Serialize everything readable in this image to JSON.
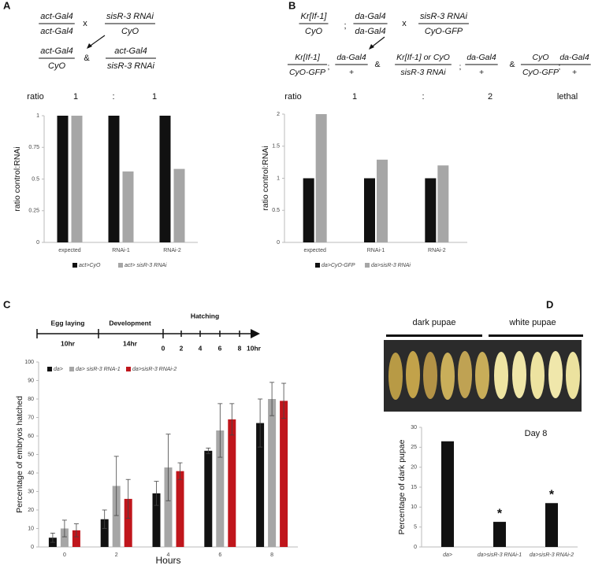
{
  "panel_a": {
    "label": "A",
    "parents": [
      {
        "top": "act-Gal4",
        "bottom": "act-Gal4"
      },
      {
        "text": "x"
      },
      {
        "top": "sisR-3 RNAi",
        "bottom": "CyO"
      }
    ],
    "offspring": [
      {
        "top": "act-Gal4",
        "bottom": "CyO"
      },
      {
        "text": "&"
      },
      {
        "top": "act-Gal4",
        "bottom": "sisR-3 RNAi"
      }
    ],
    "ratio": [
      "ratio",
      "1",
      ":",
      "1"
    ]
  },
  "panel_b": {
    "label": "B",
    "parents": [
      {
        "top": "Kr[If-1]",
        "bottom": "CyO"
      },
      {
        "text": ";"
      },
      {
        "top": "da-Gal4",
        "bottom": "da-Gal4"
      },
      {
        "text": "x"
      },
      {
        "top": "sisR-3 RNAi",
        "bottom": "CyO-GFP"
      }
    ],
    "offspring": [
      {
        "top": "Kr[If-1]",
        "bottom": "CyO-GFP"
      },
      {
        "text": ";"
      },
      {
        "top": "da-Gal4",
        "bottom": "+"
      },
      {
        "text": "&"
      },
      {
        "top": "Kr[If-1] or CyO",
        "bottom": "sisR-3 RNAi"
      },
      {
        "text": ";"
      },
      {
        "top": "da-Gal4",
        "bottom": "+"
      },
      {
        "text": "&"
      },
      {
        "top": "CyO",
        "bottom": "CyO-GFP"
      },
      {
        "text": ";"
      },
      {
        "top": "da-Gal4",
        "bottom": "+"
      }
    ],
    "ratio": [
      "ratio",
      "1",
      ":",
      "2",
      "lethal"
    ]
  },
  "panel_c": {
    "label": "C",
    "phases": [
      {
        "name": "Egg laying",
        "duration": "10hr"
      },
      {
        "name": "Development",
        "duration": "14hr"
      },
      {
        "name": "Hatching"
      }
    ],
    "hours": [
      "0",
      "2",
      "4",
      "6",
      "8",
      "10hr"
    ]
  },
  "panel_d": {
    "label": "D",
    "photo_labels": [
      "dark pupae",
      "white pupae"
    ]
  },
  "chart_data": [
    {
      "type": "bar",
      "y_label": "ratio control:RNAi",
      "categories": [
        "expected",
        "RNAi-1",
        "RNAi-2"
      ],
      "series": [
        {
          "name": "act>CyO",
          "color": "#111111",
          "values": [
            1,
            1,
            1
          ]
        },
        {
          "name": "act> sisR-3 RNAi",
          "color": "#a6a6a6",
          "values": [
            1,
            0.56,
            0.58
          ]
        }
      ],
      "ylim": [
        0,
        1
      ],
      "yticks": [
        0,
        0.25,
        0.5,
        0.75,
        1
      ],
      "grid": false
    },
    {
      "type": "bar",
      "y_label": "ratio control:RNAi",
      "categories": [
        "expected",
        "RNAi-1",
        "RNAi-2"
      ],
      "series": [
        {
          "name": "da>CyO-GFP",
          "color": "#111111",
          "values": [
            1,
            1,
            1
          ]
        },
        {
          "name": "da>sisR-3 RNAi",
          "color": "#a6a6a6",
          "values": [
            2,
            1.29,
            1.2
          ]
        }
      ],
      "ylim": [
        0,
        2
      ],
      "yticks": [
        0,
        0.5,
        1,
        1.5,
        2
      ],
      "grid": false
    },
    {
      "type": "bar",
      "y_label": "Percentage of embryos hatched",
      "x_label": "Hours",
      "categories": [
        "0",
        "2",
        "4",
        "6",
        "8"
      ],
      "series": [
        {
          "name": "da>",
          "color": "#111111",
          "values": [
            5,
            15,
            29,
            52,
            67
          ],
          "errors": [
            2.5,
            5,
            6.5,
            1.5,
            13
          ]
        },
        {
          "name": "da> sisR-3 RNA-1",
          "color": "#a6a6a6",
          "values": [
            10,
            33,
            43,
            63,
            80
          ],
          "errors": [
            4.5,
            16,
            18,
            14.5,
            9
          ]
        },
        {
          "name": "da>sisR-3 RNAi-2",
          "color": "#c0161c",
          "values": [
            9,
            26,
            41,
            69,
            79
          ],
          "errors": [
            3.5,
            10.5,
            4.5,
            8.5,
            9.5
          ]
        }
      ],
      "ylim": [
        0,
        100
      ],
      "yticks": [
        0,
        10,
        20,
        30,
        40,
        50,
        60,
        70,
        80,
        90,
        100
      ],
      "grid": false
    },
    {
      "type": "bar",
      "y_label": "Percentage of dark pupae",
      "annotation": "Day 8",
      "categories": [
        "da>",
        "da>sisR-3 RNAi-1",
        "da>sisR-3 RNAi-2"
      ],
      "values": [
        26.5,
        6.3,
        11
      ],
      "color": "#111111",
      "markers": [
        null,
        "*",
        "*"
      ],
      "ylim": [
        0,
        30
      ],
      "yticks": [
        0,
        5,
        10,
        15,
        20,
        25,
        30
      ],
      "grid": false
    }
  ]
}
